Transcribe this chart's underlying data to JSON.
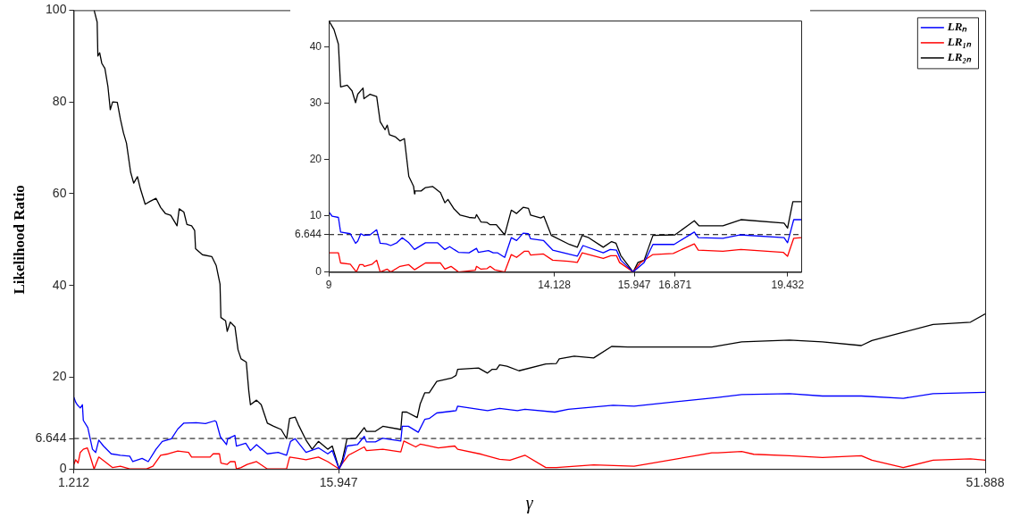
{
  "chart_data": [
    {
      "type": "line",
      "xlabel": "γ",
      "ylabel": "Likelihood Ratio",
      "xlim": [
        1.212,
        51.888
      ],
      "xticks": [
        1.212,
        15.947,
        51.888
      ],
      "ylim": [
        0,
        100
      ],
      "yticks": [
        0,
        6.644,
        20,
        40,
        60,
        80,
        100
      ],
      "legend": "top right",
      "ref_lines": [
        {
          "axis": "y",
          "value": 6.644,
          "color": "#000000",
          "line_style": "dashed"
        }
      ],
      "series": [
        {
          "name": "LRₙ",
          "color": "#0000ff",
          "x": [
            1.23,
            1.32,
            1.41,
            1.58,
            1.7,
            1.75,
            2.0,
            2.26,
            2.44,
            2.61,
            2.87,
            3.3,
            3.81,
            4.33,
            4.5,
            5.02,
            5.36,
            5.79,
            6.14,
            6.65,
            7.0,
            7.34,
            8.03,
            8.54,
            9.06,
            9.14,
            9.37,
            9.71,
            9.78,
            10.18,
            10.26,
            10.78,
            11.04,
            11.38,
            11.98,
            12.58,
            13.05,
            13.27,
            13.53,
            14.13,
            14.82,
            15.34,
            15.59,
            15.97,
            16.16,
            16.41,
            16.99,
            17.37,
            17.49,
            17.99,
            18.4,
            19.4,
            19.48,
            19.82,
            20.37,
            20.73,
            20.98,
            21.4,
            22.47,
            22.56,
            24.22,
            24.89,
            25.88,
            26.3,
            27.96,
            28.71,
            31.2,
            32.37,
            37.02,
            38.35,
            41.01,
            42.84,
            45.0,
            47.33,
            48.99,
            51.888
          ],
          "values": [
            15.6,
            14.6,
            14.0,
            13.3,
            14.0,
            10.6,
            9.0,
            4.3,
            3.6,
            6.3,
            5.0,
            3.3,
            3.0,
            2.8,
            1.6,
            2.3,
            1.6,
            4.3,
            6.0,
            6.6,
            8.7,
            10.0,
            10.1,
            9.9,
            10.5,
            10.3,
            7.0,
            5.3,
            6.6,
            7.3,
            5.0,
            5.6,
            4.0,
            5.3,
            3.3,
            3.6,
            3.0,
            6.0,
            6.6,
            3.6,
            4.6,
            3.3,
            4.0,
            0,
            1.4,
            5.0,
            5.3,
            7.1,
            5.9,
            5.9,
            6.7,
            6.1,
            9.3,
            9.3,
            8.0,
            10.8,
            11.0,
            12.2,
            12.7,
            13.7,
            12.7,
            13.2,
            12.7,
            13.0,
            12.4,
            13.0,
            13.9,
            13.7,
            15.6,
            16.2,
            16.4,
            15.9,
            15.9,
            15.4,
            16.4,
            16.7
          ]
        },
        {
          "name": "LR₁ₙ",
          "color": "#ff0000",
          "x": [
            1.23,
            1.32,
            1.46,
            1.58,
            1.75,
            1.97,
            2.09,
            2.35,
            2.61,
            2.95,
            3.38,
            3.81,
            4.33,
            5.27,
            5.62,
            6.05,
            6.48,
            7.0,
            7.6,
            7.77,
            8.8,
            8.97,
            9.32,
            9.4,
            9.75,
            9.92,
            10.18,
            10.26,
            10.52,
            10.86,
            11.38,
            11.98,
            13.05,
            13.22,
            13.7,
            14.13,
            14.82,
            15.34,
            15.97,
            16.16,
            16.49,
            17.37,
            17.49,
            18.4,
            19.4,
            19.57,
            20.23,
            20.48,
            20.73,
            21.48,
            22.4,
            22.56,
            23.89,
            24.89,
            25.47,
            26.3,
            27.46,
            28.05,
            30.12,
            32.37,
            36.69,
            37.02,
            38.35,
            39.02,
            41.01,
            42.84,
            45.0,
            45.59,
            47.33,
            48.99,
            51.07,
            51.888
          ],
          "values": [
            1.0,
            2.0,
            1.3,
            3.6,
            4.3,
            4.6,
            3.3,
            0,
            2.6,
            1.6,
            0.3,
            0.6,
            0,
            0,
            0.6,
            3.0,
            3.3,
            3.9,
            3.6,
            2.6,
            2.6,
            3.3,
            3.3,
            1.3,
            1.0,
            1.6,
            1.6,
            0,
            0.3,
            1.0,
            1.6,
            0,
            0,
            2.6,
            2.3,
            2.0,
            2.6,
            1.6,
            0,
            1.3,
            3.0,
            4.8,
            4.0,
            4.3,
            3.7,
            6.1,
            4.8,
            5.4,
            5.2,
            4.6,
            5.0,
            4.3,
            3.2,
            2.1,
            1.9,
            3.0,
            0.3,
            0.3,
            0.9,
            0.6,
            3.5,
            3.5,
            3.8,
            3.2,
            2.9,
            2.5,
            2.9,
            1.9,
            0.3,
            1.9,
            2.2,
            1.9
          ]
        },
        {
          "name": "LR₂ₙ",
          "color": "#000000",
          "x": [
            2.35,
            2.52,
            2.56,
            2.66,
            2.78,
            2.95,
            3.12,
            3.25,
            3.38,
            3.64,
            3.81,
            3.98,
            4.15,
            4.38,
            4.55,
            4.76,
            4.93,
            5.19,
            5.45,
            5.79,
            6.05,
            6.31,
            6.61,
            6.96,
            7.08,
            7.34,
            7.51,
            7.77,
            7.94,
            7.99,
            8.37,
            8.89,
            9.14,
            9.35,
            9.4,
            9.66,
            9.75,
            9.92,
            10.18,
            10.35,
            10.52,
            10.81,
            10.95,
            11.04,
            11.38,
            11.64,
            11.98,
            12.33,
            12.75,
            13.05,
            13.22,
            13.53,
            13.7,
            14.13,
            14.47,
            14.82,
            15.34,
            15.59,
            15.97,
            16.16,
            16.41,
            16.91,
            17.37,
            17.49,
            17.99,
            18.4,
            19.4,
            19.48,
            19.73,
            20.31,
            20.48,
            20.73,
            20.98,
            21.4,
            22.22,
            22.47,
            22.56,
            23.72,
            24.22,
            24.47,
            24.72,
            24.89,
            25.3,
            25.97,
            27.46,
            28.05,
            28.21,
            29.04,
            30.12,
            31.12,
            32.03,
            36.69,
            38.35,
            41.01,
            42.84,
            45.0,
            45.59,
            47.33,
            48.99,
            51.07,
            51.888
          ],
          "values": [
            100,
            97.4,
            90.0,
            90.7,
            88.4,
            87.3,
            83.3,
            78.3,
            80.0,
            79.9,
            76.3,
            73.3,
            71.0,
            64.7,
            62.3,
            63.7,
            61.0,
            57.7,
            58.3,
            59.0,
            57.0,
            55.7,
            55.3,
            53.0,
            56.7,
            56.0,
            53.3,
            53.0,
            52.0,
            48.0,
            46.7,
            46.3,
            44.3,
            40.3,
            33.0,
            32.3,
            30.0,
            32.0,
            31.0,
            26.0,
            24.0,
            23.3,
            17.0,
            14.0,
            15.0,
            14.0,
            10.0,
            9.3,
            8.6,
            6.6,
            11.0,
            11.3,
            9.7,
            6.3,
            4.3,
            6.0,
            4.3,
            5.0,
            0,
            2.1,
            6.6,
            6.7,
            9.0,
            8.2,
            8.2,
            9.3,
            8.6,
            12.4,
            12.4,
            11.2,
            14.2,
            16.6,
            16.6,
            19.1,
            19.8,
            20.4,
            21.7,
            22.0,
            20.9,
            21.7,
            21.7,
            22.7,
            22.4,
            21.4,
            22.9,
            23.0,
            24.0,
            24.6,
            24.2,
            26.7,
            26.6,
            26.6,
            27.7,
            28.1,
            27.7,
            26.9,
            28.0,
            29.8,
            31.5,
            32.0,
            33.8
          ]
        }
      ]
    },
    {
      "type": "line",
      "xlim": [
        9,
        19.74
      ],
      "xticks": [
        9,
        14.128,
        15.947,
        16.871,
        19.432
      ],
      "ylim": [
        0,
        44.7
      ],
      "yticks": [
        0,
        6.644,
        10,
        20,
        30,
        40
      ],
      "ref_lines": [
        {
          "axis": "y",
          "value": 6.644,
          "color": "#000000",
          "line_style": "dashed"
        }
      ],
      "series": [
        {
          "color": "#0000ff",
          "x": [
            9.0,
            9.08,
            9.22,
            9.27,
            9.49,
            9.61,
            9.66,
            9.73,
            9.8,
            9.94,
            10.09,
            10.17,
            10.31,
            10.41,
            10.55,
            10.67,
            10.82,
            10.95,
            11.2,
            11.47,
            11.64,
            11.75,
            11.95,
            12.19,
            12.36,
            12.4,
            12.63,
            12.74,
            12.84,
            13.0,
            13.15,
            13.27,
            13.42,
            13.54,
            13.59,
            13.88,
            14.09,
            14.65,
            14.78,
            15.24,
            15.4,
            15.54,
            15.64,
            15.92,
            16.17,
            16.37,
            16.85,
            17.31,
            17.4,
            17.96,
            18.34,
            19.35,
            19.43,
            19.57,
            19.74
          ],
          "values": [
            10.7,
            9.9,
            9.7,
            7.1,
            6.8,
            5.1,
            5.5,
            6.8,
            6.5,
            6.6,
            7.5,
            5.1,
            5.0,
            4.7,
            5.2,
            6.1,
            5.2,
            4.0,
            5.2,
            5.2,
            4.0,
            4.5,
            3.5,
            3.4,
            4.2,
            3.5,
            3.8,
            3.4,
            3.4,
            2.6,
            6.1,
            5.6,
            6.9,
            6.8,
            5.9,
            5.6,
            3.9,
            2.8,
            4.7,
            3.4,
            4.0,
            3.9,
            2.1,
            0,
            1.7,
            4.9,
            4.9,
            7.1,
            6.1,
            6.0,
            6.6,
            6.1,
            5.2,
            9.3,
            9.3
          ]
        },
        {
          "color": "#ff0000",
          "x": [
            9.0,
            9.22,
            9.27,
            9.49,
            9.63,
            9.7,
            9.78,
            9.81,
            9.99,
            10.09,
            10.17,
            10.33,
            10.41,
            10.62,
            10.82,
            10.95,
            11.2,
            11.54,
            11.64,
            11.78,
            11.95,
            12.33,
            12.36,
            12.46,
            12.6,
            12.67,
            12.77,
            13.0,
            13.15,
            13.27,
            13.45,
            13.54,
            13.59,
            13.88,
            14.09,
            14.45,
            14.65,
            14.76,
            15.24,
            15.41,
            15.54,
            15.61,
            15.92,
            16.08,
            16.37,
            16.83,
            17.31,
            17.4,
            17.96,
            18.37,
            19.33,
            19.43,
            19.57,
            19.74
          ],
          "values": [
            3.4,
            3.4,
            1.6,
            1.4,
            0,
            1.3,
            1.3,
            1.0,
            1.4,
            2.1,
            0,
            0.5,
            0,
            1.0,
            1.3,
            0.4,
            1.6,
            1.6,
            0.5,
            1.0,
            0,
            0.3,
            1.0,
            0.5,
            0.6,
            1.0,
            0.4,
            0,
            3.1,
            2.6,
            3.7,
            3.7,
            3.0,
            3.2,
            2.1,
            1.9,
            1.7,
            3.4,
            2.4,
            2.9,
            2.9,
            1.7,
            0,
            1.6,
            3.1,
            3.3,
            5.0,
            3.9,
            3.7,
            4.0,
            3.5,
            2.8,
            6.0,
            6.1
          ]
        },
        {
          "color": "#000000",
          "x": [
            9.0,
            9.12,
            9.22,
            9.27,
            9.42,
            9.53,
            9.61,
            9.66,
            9.78,
            9.8,
            9.94,
            10.09,
            10.17,
            10.28,
            10.33,
            10.38,
            10.52,
            10.62,
            10.72,
            10.82,
            10.93,
            10.95,
            10.96,
            11.1,
            11.2,
            11.36,
            11.54,
            11.64,
            11.71,
            11.85,
            11.99,
            12.19,
            12.33,
            12.36,
            12.46,
            12.6,
            12.67,
            12.81,
            13.0,
            13.15,
            13.27,
            13.42,
            13.54,
            13.59,
            13.82,
            13.89,
            14.06,
            14.47,
            14.65,
            14.76,
            14.91,
            15.24,
            15.43,
            15.53,
            15.64,
            15.92,
            16.03,
            16.17,
            16.37,
            16.87,
            17.31,
            17.42,
            17.96,
            18.37,
            19.35,
            19.43,
            19.55,
            19.74
          ],
          "values": [
            44.7,
            43.1,
            40.5,
            32.9,
            33.2,
            32.2,
            30.1,
            31.6,
            32.7,
            30.8,
            31.6,
            31.2,
            26.7,
            25.3,
            26.1,
            24.4,
            24.0,
            23.3,
            23.7,
            17.0,
            15.2,
            13.9,
            14.4,
            14.4,
            15.0,
            15.2,
            14.1,
            12.3,
            12.9,
            11.2,
            10.1,
            9.7,
            9.6,
            10.2,
            8.9,
            8.8,
            8.4,
            8.4,
            6.6,
            11.0,
            10.4,
            11.5,
            11.3,
            10.1,
            9.6,
            9.9,
            6.5,
            4.9,
            4.4,
            6.5,
            6.1,
            4.4,
            5.4,
            5.1,
            2.9,
            0,
            1.7,
            2.1,
            6.5,
            6.6,
            9.1,
            8.2,
            8.2,
            9.3,
            8.7,
            7.8,
            12.5,
            12.5
          ]
        }
      ]
    }
  ]
}
